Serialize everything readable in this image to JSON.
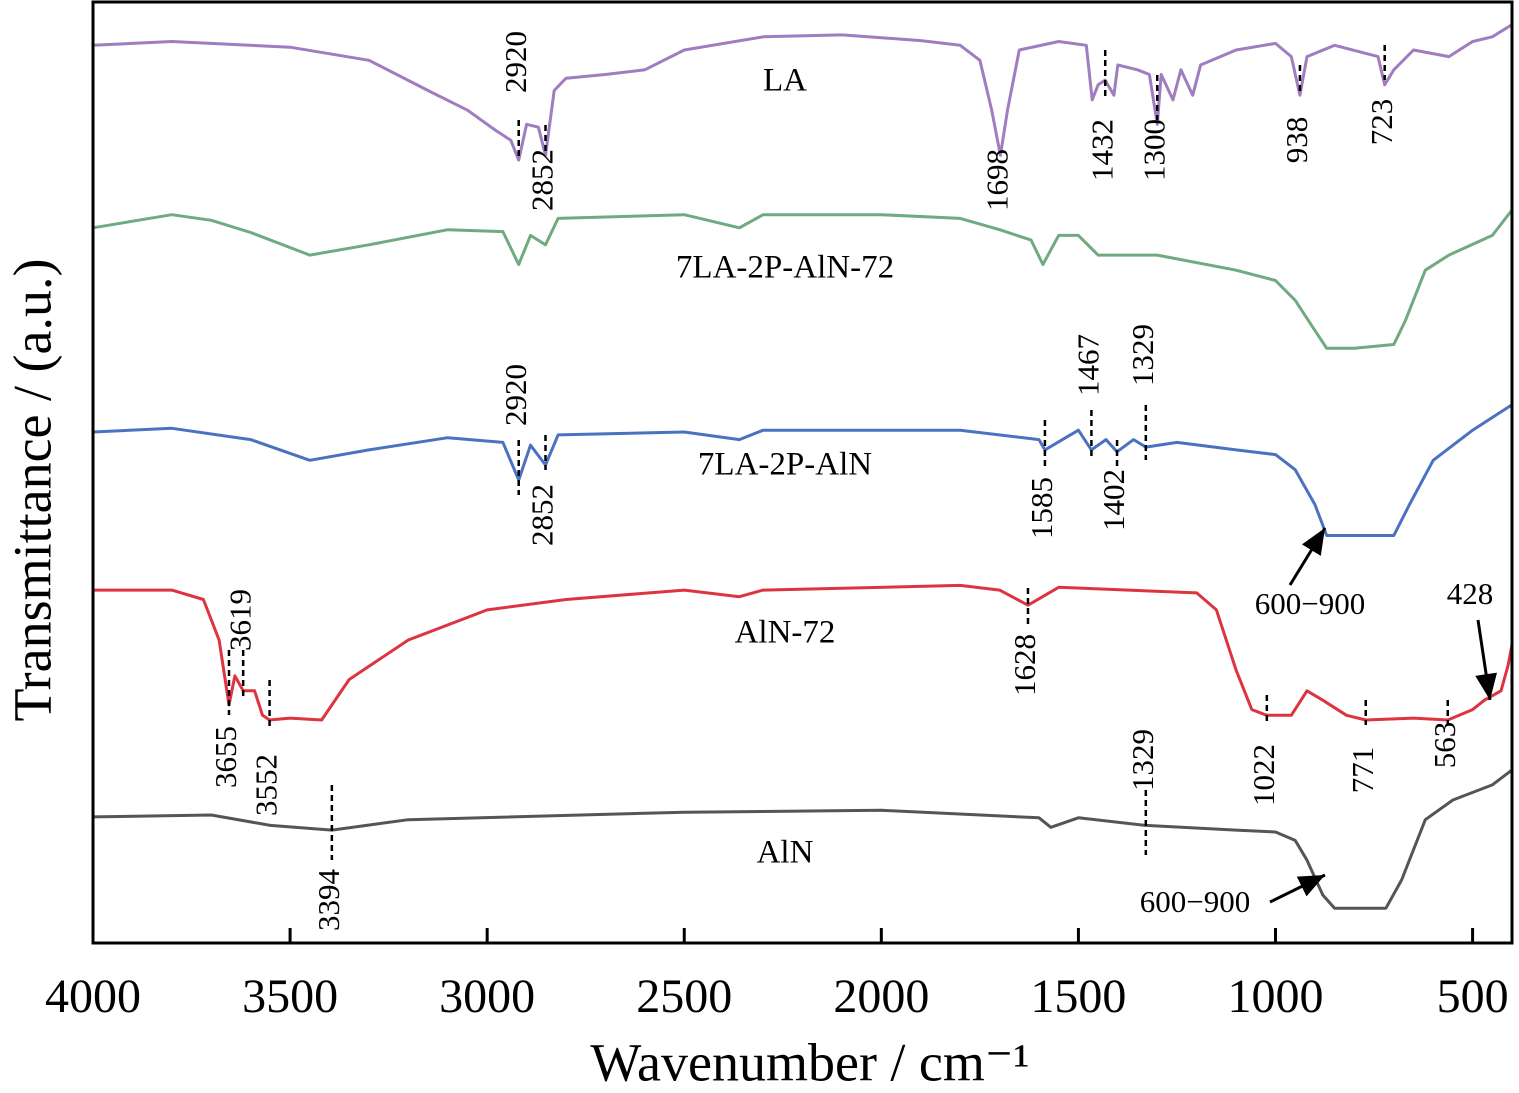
{
  "chart_data": {
    "type": "line",
    "xlabel": "Wavenumber / cm⁻¹",
    "ylabel": "Transmittance / (a.u.)",
    "xlim": [
      4000,
      400
    ],
    "ylim": [
      0,
      100
    ],
    "xticks": [
      4000,
      3500,
      3000,
      2500,
      2000,
      1500,
      1000,
      500
    ],
    "series": [
      {
        "name": "LA",
        "color": "#a07cc0",
        "x": [
          4000,
          3800,
          3500,
          3300,
          3150,
          3050,
          2980,
          2940,
          2920,
          2900,
          2870,
          2852,
          2830,
          2800,
          2700,
          2600,
          2500,
          2300,
          2100,
          1900,
          1800,
          1750,
          1720,
          1698,
          1680,
          1650,
          1550,
          1480,
          1465,
          1450,
          1432,
          1410,
          1400,
          1350,
          1320,
          1300,
          1290,
          1260,
          1240,
          1210,
          1190,
          1100,
          1000,
          960,
          938,
          920,
          850,
          740,
          723,
          700,
          650,
          560,
          500,
          450,
          400
        ],
        "values": [
          95.4,
          95.8,
          95.2,
          93.8,
          90.6,
          88.5,
          86.4,
          85.3,
          83.2,
          87.0,
          86.7,
          83.7,
          90.6,
          91.9,
          92.3,
          92.8,
          94.9,
          96.3,
          96.5,
          95.9,
          95.4,
          93.8,
          88.5,
          83.7,
          88.5,
          94.9,
          95.8,
          95.4,
          89.6,
          91.2,
          91.7,
          90.1,
          93.3,
          92.8,
          92.3,
          87.0,
          92.3,
          89.6,
          92.8,
          90.1,
          93.3,
          94.9,
          95.6,
          94.2,
          90.1,
          94.2,
          95.4,
          94.2,
          91.2,
          92.8,
          94.9,
          94.2,
          95.8,
          96.3,
          97.6
        ]
      },
      {
        "name": "7LA-2P-AlN-72",
        "color": "#70aa80",
        "x": [
          4000,
          3800,
          3700,
          3600,
          3450,
          3300,
          3100,
          2960,
          2920,
          2890,
          2852,
          2820,
          2500,
          2360,
          2300,
          2000,
          1800,
          1700,
          1620,
          1590,
          1550,
          1500,
          1450,
          1300,
          1100,
          1000,
          950,
          900,
          870,
          800,
          700,
          670,
          620,
          560,
          450,
          400
        ],
        "values": [
          76.0,
          77.4,
          76.8,
          75.5,
          73.1,
          74.2,
          75.8,
          75.6,
          72.1,
          75.2,
          74.2,
          77.0,
          77.4,
          76.0,
          77.4,
          77.4,
          77.0,
          75.8,
          74.7,
          72.1,
          75.2,
          75.2,
          73.1,
          73.1,
          71.5,
          70.4,
          68.3,
          65.1,
          63.2,
          63.2,
          63.6,
          66.2,
          71.5,
          73.1,
          75.2,
          77.9
        ]
      },
      {
        "name": "7LA-2P-AlN",
        "color": "#4a72c0",
        "x": [
          4000,
          3800,
          3600,
          3450,
          3300,
          3100,
          2960,
          2920,
          2890,
          2852,
          2820,
          2500,
          2360,
          2300,
          1800,
          1600,
          1585,
          1500,
          1467,
          1430,
          1402,
          1360,
          1329,
          1250,
          1100,
          1000,
          950,
          900,
          870,
          800,
          700,
          660,
          600,
          500,
          400
        ],
        "values": [
          54.3,
          54.7,
          53.5,
          51.3,
          52.4,
          53.7,
          53.2,
          49.2,
          52.9,
          50.8,
          54.0,
          54.3,
          53.5,
          54.5,
          54.5,
          53.5,
          52.4,
          54.5,
          52.4,
          53.5,
          52.2,
          53.5,
          52.7,
          53.2,
          52.4,
          51.9,
          50.3,
          46.6,
          43.3,
          43.3,
          43.3,
          46.6,
          51.3,
          54.5,
          57.2
        ]
      },
      {
        "name": "AlN-72",
        "color": "#dd3441",
        "x": [
          4000,
          3800,
          3720,
          3680,
          3655,
          3640,
          3619,
          3590,
          3570,
          3552,
          3500,
          3420,
          3350,
          3200,
          3000,
          2800,
          2500,
          2360,
          2300,
          1800,
          1700,
          1628,
          1550,
          1200,
          1150,
          1100,
          1060,
          1022,
          960,
          920,
          880,
          820,
          771,
          650,
          563,
          500,
          470,
          428,
          410,
          400
        ],
        "values": [
          37.5,
          37.5,
          36.5,
          32.2,
          25.3,
          28.4,
          26.8,
          26.8,
          24.2,
          23.7,
          23.9,
          23.7,
          28.0,
          32.2,
          35.4,
          36.5,
          37.5,
          36.8,
          37.5,
          38.0,
          37.5,
          35.9,
          37.8,
          37.2,
          35.4,
          29.0,
          24.8,
          24.2,
          24.2,
          26.8,
          25.8,
          24.2,
          23.7,
          23.9,
          23.7,
          24.8,
          25.8,
          26.8,
          29.5,
          31.7
        ]
      },
      {
        "name": "AlN",
        "color": "#555555",
        "x": [
          4000,
          3700,
          3550,
          3394,
          3200,
          2500,
          2000,
          1600,
          1570,
          1500,
          1329,
          1100,
          1000,
          950,
          920,
          880,
          850,
          720,
          680,
          620,
          550,
          450,
          400
        ],
        "values": [
          13.4,
          13.6,
          12.5,
          12.0,
          13.1,
          13.9,
          14.1,
          13.3,
          12.3,
          13.3,
          12.5,
          12.0,
          11.8,
          10.9,
          8.8,
          5.1,
          3.7,
          3.7,
          6.7,
          13.1,
          15.2,
          16.8,
          18.4
        ]
      }
    ],
    "annotations": [
      "2920",
      "2852",
      "1698",
      "1432",
      "1300",
      "938",
      "723",
      "2920",
      "2852",
      "1585",
      "1467",
      "1402",
      "1329",
      "3655",
      "3619",
      "3552",
      "1628",
      "1022",
      "771",
      "563",
      "3394",
      "1329",
      "600−900",
      "428",
      "600−900"
    ]
  }
}
